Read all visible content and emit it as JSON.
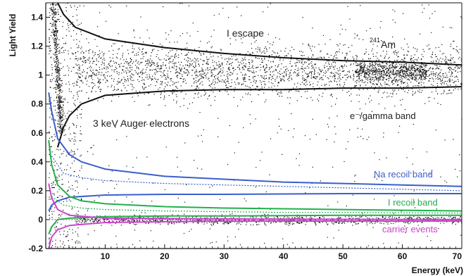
{
  "chart_data": {
    "type": "scatter",
    "xlabel": "Energy (keV)",
    "ylabel": "Light Yield",
    "xlim": [
      0,
      70
    ],
    "ylim": [
      -0.2,
      1.5
    ],
    "x_ticks": [
      10,
      20,
      30,
      40,
      50,
      60,
      70
    ],
    "x_tick_labels": [
      "10",
      "20",
      "30",
      "40",
      "50",
      "60",
      "70"
    ],
    "y_ticks": [
      -0.2,
      0,
      0.2,
      0.4,
      0.6,
      0.8,
      1,
      1.2,
      1.4
    ],
    "y_tick_labels": [
      "-0.2",
      "0",
      "0.2",
      "0.4",
      "0.6",
      "0.8",
      "1",
      "1.2",
      "1.4"
    ],
    "grid": false,
    "legend": "none",
    "annotations": {
      "i_escape": "I escape",
      "am_sup": "241",
      "am": "Am",
      "auger": "3 keV Auger electrons",
      "gamma_band": "e⁻/gamma band",
      "na_band": "Na recoil band",
      "i_band": "I recoil band",
      "carrier": "carrier events"
    },
    "colors": {
      "points": "#111111",
      "gamma_curves": "#111111",
      "na": "#3a5fcd",
      "i": "#22b04a",
      "carrier": "#cc44cc"
    },
    "series": [
      {
        "kind": "band",
        "color_key": "gamma_curves",
        "upper": [
          [
            2,
            1.5
          ],
          [
            3,
            1.42
          ],
          [
            5,
            1.33
          ],
          [
            10,
            1.25
          ],
          [
            20,
            1.19
          ],
          [
            30,
            1.15
          ],
          [
            40,
            1.12
          ],
          [
            50,
            1.1
          ],
          [
            60,
            1.09
          ],
          [
            70,
            1.07
          ]
        ],
        "lower": [
          [
            2,
            0.5
          ],
          [
            3,
            0.64
          ],
          [
            4,
            0.72
          ],
          [
            6,
            0.8
          ],
          [
            10,
            0.86
          ],
          [
            20,
            0.89
          ],
          [
            30,
            0.9
          ],
          [
            40,
            0.9
          ],
          [
            50,
            0.91
          ],
          [
            60,
            0.91
          ],
          [
            70,
            0.92
          ]
        ]
      },
      {
        "name": "Na recoil band",
        "kind": "band",
        "color_key": "na",
        "upper": [
          [
            0.5,
            0.88
          ],
          [
            1,
            0.75
          ],
          [
            2,
            0.56
          ],
          [
            4,
            0.45
          ],
          [
            6,
            0.4
          ],
          [
            10,
            0.35
          ],
          [
            20,
            0.3
          ],
          [
            30,
            0.28
          ],
          [
            40,
            0.26
          ],
          [
            50,
            0.25
          ],
          [
            60,
            0.24
          ],
          [
            70,
            0.23
          ]
        ],
        "lower": [
          [
            0.5,
            0.06
          ],
          [
            1,
            0.1
          ],
          [
            2,
            0.13
          ],
          [
            4,
            0.155
          ],
          [
            10,
            0.17
          ],
          [
            20,
            0.175
          ],
          [
            30,
            0.175
          ],
          [
            50,
            0.18
          ],
          [
            70,
            0.18
          ]
        ],
        "center": [
          [
            1,
            0.44
          ],
          [
            3,
            0.32
          ],
          [
            6,
            0.29
          ],
          [
            10,
            0.27
          ],
          [
            20,
            0.25
          ],
          [
            30,
            0.24
          ],
          [
            40,
            0.23
          ],
          [
            50,
            0.22
          ],
          [
            60,
            0.21
          ],
          [
            70,
            0.2
          ]
        ]
      },
      {
        "name": "I recoil band",
        "kind": "band",
        "color_key": "i",
        "upper": [
          [
            0.5,
            0.55
          ],
          [
            1,
            0.38
          ],
          [
            2,
            0.24
          ],
          [
            4,
            0.16
          ],
          [
            6,
            0.13
          ],
          [
            10,
            0.11
          ],
          [
            20,
            0.09
          ],
          [
            30,
            0.08
          ],
          [
            40,
            0.075
          ],
          [
            50,
            0.07
          ],
          [
            60,
            0.065
          ],
          [
            70,
            0.06
          ]
        ],
        "lower": [
          [
            0.5,
            -0.1
          ],
          [
            1,
            -0.05
          ],
          [
            2,
            0.0
          ],
          [
            4,
            0.01
          ],
          [
            10,
            0.02
          ],
          [
            20,
            0.025
          ],
          [
            30,
            0.025
          ],
          [
            50,
            0.03
          ],
          [
            70,
            0.03
          ]
        ],
        "center": [
          [
            1,
            0.16
          ],
          [
            3,
            0.1
          ],
          [
            6,
            0.08
          ],
          [
            10,
            0.07
          ],
          [
            20,
            0.06
          ],
          [
            30,
            0.055
          ],
          [
            40,
            0.05
          ],
          [
            50,
            0.05
          ],
          [
            70,
            0.045
          ]
        ]
      },
      {
        "name": "carrier events",
        "kind": "band",
        "color_key": "carrier",
        "upper": [
          [
            0.5,
            0.25
          ],
          [
            1,
            0.15
          ],
          [
            2,
            0.07
          ],
          [
            4,
            0.03
          ],
          [
            10,
            0.01
          ],
          [
            30,
            0.005
          ],
          [
            70,
            0.0
          ]
        ],
        "lower": [
          [
            0.5,
            -0.2
          ],
          [
            1,
            -0.12
          ],
          [
            2,
            -0.07
          ],
          [
            4,
            -0.04
          ],
          [
            10,
            -0.02
          ],
          [
            30,
            -0.01
          ],
          [
            70,
            -0.01
          ]
        ],
        "center": [
          [
            1,
            0.0
          ],
          [
            5,
            0.0
          ],
          [
            70,
            0.0
          ]
        ]
      }
    ],
    "point_clusters": [
      {
        "name": "gamma band",
        "x_range": [
          5,
          70
        ],
        "y_center": 1.03,
        "y_spread": 0.18,
        "count": 2400
      },
      {
        "name": "241Am peak",
        "x_range": [
          52,
          64
        ],
        "y_center": 1.03,
        "y_spread": 0.07,
        "count": 600
      },
      {
        "name": "3 keV Auger electrons",
        "x_range": [
          1,
          5
        ],
        "y_range": [
          0.6,
          1.5
        ],
        "count": 450
      },
      {
        "name": "carrier events",
        "x_range": [
          5,
          70
        ],
        "y_center": 0.0,
        "y_spread": 0.03,
        "count": 1100
      },
      {
        "name": "low-energy scatter",
        "x_range": [
          0.5,
          6
        ],
        "y_range": [
          -0.2,
          1.5
        ],
        "count": 450
      },
      {
        "name": "sparse background",
        "x_range": [
          0.5,
          70
        ],
        "y_range": [
          -0.2,
          1.5
        ],
        "count": 500
      }
    ]
  }
}
